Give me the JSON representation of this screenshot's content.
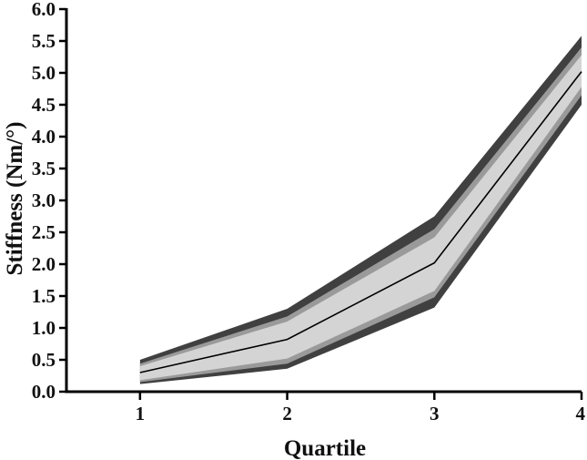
{
  "chart_data": {
    "type": "area",
    "xlabel": "Quartile",
    "ylabel": "Stiffness (Nm/°)",
    "x": [
      1,
      2,
      3,
      4
    ],
    "xticks": [
      "1",
      "2",
      "3",
      "4"
    ],
    "xlim": [
      0.5,
      4
    ],
    "ylim": [
      0,
      6
    ],
    "yticks": [
      "0.0",
      "0.5",
      "1.0",
      "1.5",
      "2.0",
      "2.5",
      "3.0",
      "3.5",
      "4.0",
      "4.5",
      "5.0",
      "5.5",
      "6.0"
    ],
    "grid": false,
    "bands": [
      {
        "lower": [
          0.12,
          0.36,
          1.32,
          4.5
        ],
        "upper": [
          0.5,
          1.3,
          2.75,
          5.58
        ],
        "color": "#404040"
      },
      {
        "lower": [
          0.15,
          0.44,
          1.48,
          4.65
        ],
        "upper": [
          0.44,
          1.18,
          2.55,
          5.4
        ],
        "color": "#9a9a9a"
      },
      {
        "lower": [
          0.18,
          0.52,
          1.58,
          4.78
        ],
        "upper": [
          0.4,
          1.1,
          2.42,
          5.28
        ],
        "color": "#d4d4d4"
      }
    ],
    "series": [
      {
        "values": [
          0.3,
          0.82,
          2.02,
          5.02
        ],
        "color": "#000000"
      }
    ]
  }
}
